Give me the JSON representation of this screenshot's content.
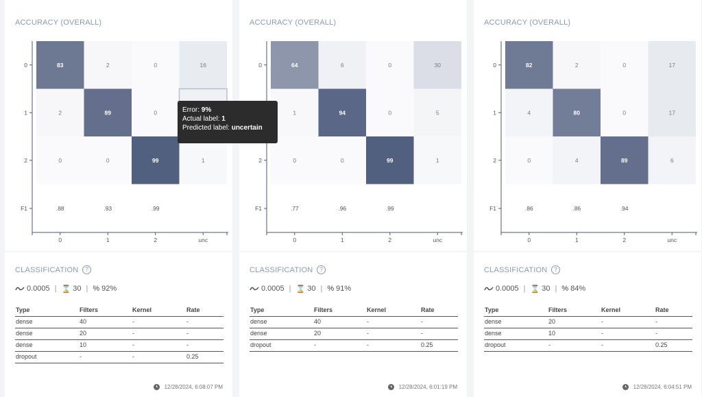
{
  "cards": [
    {
      "accuracy_title": "ACCURACY (OVERALL)",
      "classification_title": "CLASSIFICATION",
      "help_glyph": "?",
      "stats": {
        "learning_rate": "0.0005",
        "epochs": "30",
        "accuracy": "92%"
      },
      "matrix": [
        [
          83,
          2,
          0,
          16
        ],
        [
          2,
          89,
          0,
          9
        ],
        [
          0,
          0,
          99,
          1
        ]
      ],
      "f1": [
        ".88",
        ".93",
        ".99"
      ],
      "columns": [
        "Type",
        "Filters",
        "Kernel",
        "Rate"
      ],
      "layers": [
        [
          "dense",
          "40",
          "-",
          "-"
        ],
        [
          "dense",
          "20",
          "-",
          "-"
        ],
        [
          "dense",
          "10",
          "-",
          "-"
        ],
        [
          "dropout",
          "-",
          "-",
          "0.25"
        ]
      ],
      "timestamp": "12/28/2024, 6:08:07 PM"
    },
    {
      "accuracy_title": "ACCURACY (OVERALL)",
      "classification_title": "CLASSIFICATION",
      "help_glyph": "?",
      "stats": {
        "learning_rate": "0.0005",
        "epochs": "30",
        "accuracy": "91%"
      },
      "matrix": [
        [
          64,
          6,
          0,
          30
        ],
        [
          1,
          94,
          0,
          5
        ],
        [
          0,
          0,
          99,
          1
        ]
      ],
      "f1": [
        ".77",
        ".96",
        ".99"
      ],
      "columns": [
        "Type",
        "Filters",
        "Kernel",
        "Rate"
      ],
      "layers": [
        [
          "dense",
          "40",
          "-",
          "-"
        ],
        [
          "dense",
          "20",
          "-",
          "-"
        ],
        [
          "dropout",
          "-",
          "-",
          "0.25"
        ]
      ],
      "timestamp": "12/28/2024, 6:01:19 PM"
    },
    {
      "accuracy_title": "ACCURACY (OVERALL)",
      "classification_title": "CLASSIFICATION",
      "help_glyph": "?",
      "stats": {
        "learning_rate": "0.0005",
        "epochs": "30",
        "accuracy": "84%"
      },
      "matrix": [
        [
          82,
          2,
          0,
          17
        ],
        [
          4,
          80,
          0,
          17
        ],
        [
          0,
          4,
          89,
          6
        ]
      ],
      "f1": [
        ".86",
        ".86",
        ".94"
      ],
      "columns": [
        "Type",
        "Filters",
        "Kernel",
        "Rate"
      ],
      "layers": [
        [
          "dense",
          "20",
          "-",
          "-"
        ],
        [
          "dense",
          "10",
          "-",
          "-"
        ],
        [
          "dropout",
          "-",
          "-",
          "0.25"
        ]
      ],
      "timestamp": "12/28/2024, 6:04:51 PM"
    }
  ],
  "chart_data": [
    {
      "type": "heatmap",
      "title": "ACCURACY (OVERALL)",
      "x_categories": [
        "0",
        "1",
        "2",
        "unc"
      ],
      "y_categories": [
        "0",
        "1",
        "2"
      ],
      "values": [
        [
          83,
          2,
          0,
          16
        ],
        [
          2,
          89,
          0,
          9
        ],
        [
          0,
          0,
          99,
          1
        ]
      ],
      "f1_row_label": "F1",
      "f1": [
        ".88",
        ".93",
        ".99"
      ]
    },
    {
      "type": "heatmap",
      "title": "ACCURACY (OVERALL)",
      "x_categories": [
        "0",
        "1",
        "2",
        "unc"
      ],
      "y_categories": [
        "0",
        "1",
        "2"
      ],
      "values": [
        [
          64,
          6,
          0,
          30
        ],
        [
          1,
          94,
          0,
          5
        ],
        [
          0,
          0,
          99,
          1
        ]
      ],
      "f1_row_label": "F1",
      "f1": [
        ".77",
        ".96",
        ".99"
      ]
    },
    {
      "type": "heatmap",
      "title": "ACCURACY (OVERALL)",
      "x_categories": [
        "0",
        "1",
        "2",
        "unc"
      ],
      "y_categories": [
        "0",
        "1",
        "2"
      ],
      "values": [
        [
          82,
          2,
          0,
          17
        ],
        [
          4,
          80,
          0,
          17
        ],
        [
          0,
          4,
          89,
          6
        ]
      ],
      "f1_row_label": "F1",
      "f1": [
        ".86",
        ".86",
        ".94"
      ]
    }
  ],
  "axis": {
    "x_labels": [
      "0",
      "1",
      "2",
      "unc"
    ],
    "y_labels": [
      "0",
      "1",
      "2",
      "F1"
    ]
  },
  "tooltip": {
    "error_label": "Error: ",
    "error_value": "9%",
    "actual_label": "Actual label: ",
    "actual_value": "1",
    "predicted_label": "Predicted label: ",
    "predicted_value": "uncertain"
  },
  "colors": {
    "diag_dark": "#566384",
    "offdiag_unc": "#d3d8e2",
    "cell_text_dark": "#ffffff",
    "cell_text_light": "#7a7a7a",
    "axis": "#4a5a7a"
  }
}
